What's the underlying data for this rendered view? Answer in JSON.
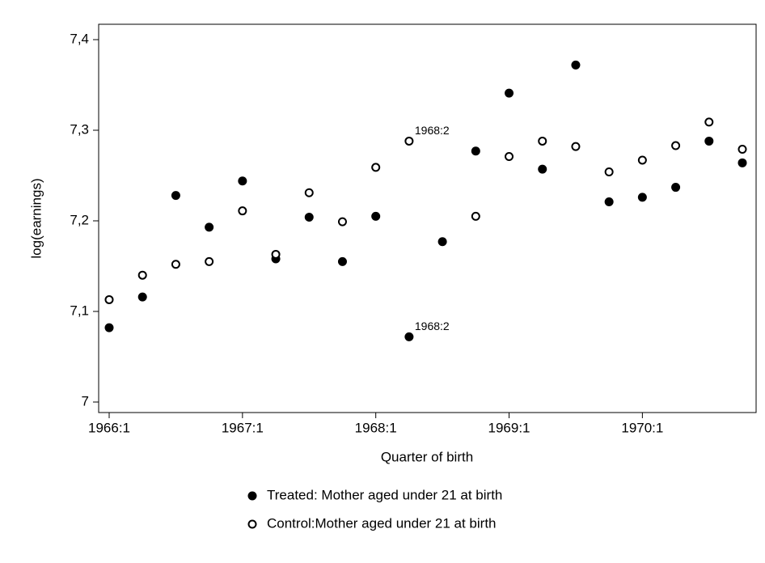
{
  "chart_data": {
    "type": "scatter",
    "x_label": "Quarter of birth",
    "y_label": "log(earnings)",
    "categories": [
      "1966:1",
      null,
      null,
      null,
      "1967:1",
      null,
      null,
      null,
      "1968:1",
      null,
      null,
      null,
      "1969:1",
      null,
      null,
      null,
      "1970:1",
      null,
      null,
      null
    ],
    "series": [
      {
        "name": "Treated: Mother aged under 21 at birth",
        "color": "#000000",
        "filled": true,
        "values": [
          7.082,
          7.116,
          7.228,
          7.193,
          7.244,
          7.158,
          7.204,
          7.155,
          7.205,
          7.072,
          7.177,
          7.277,
          7.341,
          7.257,
          7.372,
          7.221,
          7.226,
          7.237,
          7.288,
          7.264
        ],
        "point_labels": [
          null,
          null,
          null,
          null,
          null,
          null,
          null,
          null,
          null,
          "1968:2",
          null,
          null,
          null,
          null,
          null,
          null,
          null,
          null,
          null,
          null
        ]
      },
      {
        "name": "Control:Mother aged under 21 at birth",
        "color": "#000000",
        "filled": false,
        "values": [
          7.113,
          7.14,
          7.152,
          7.155,
          7.211,
          7.163,
          7.231,
          7.199,
          7.259,
          7.288,
          null,
          7.205,
          7.271,
          7.288,
          7.282,
          7.254,
          7.267,
          7.283,
          7.309,
          7.279
        ],
        "point_labels": [
          null,
          null,
          null,
          null,
          null,
          null,
          null,
          null,
          null,
          "1968:2",
          null,
          null,
          null,
          null,
          null,
          null,
          null,
          null,
          null,
          null
        ]
      }
    ],
    "ylim": [
      7,
      7.4
    ],
    "yticks": [
      7,
      {
        "value": 7.1,
        "label": "7,1"
      },
      {
        "value": 7.2,
        "label": "7,2"
      },
      {
        "value": 7.3,
        "label": "7,3"
      },
      {
        "value": 7.4,
        "label": "7,4"
      }
    ],
    "grid": false,
    "legend": "bottom"
  }
}
